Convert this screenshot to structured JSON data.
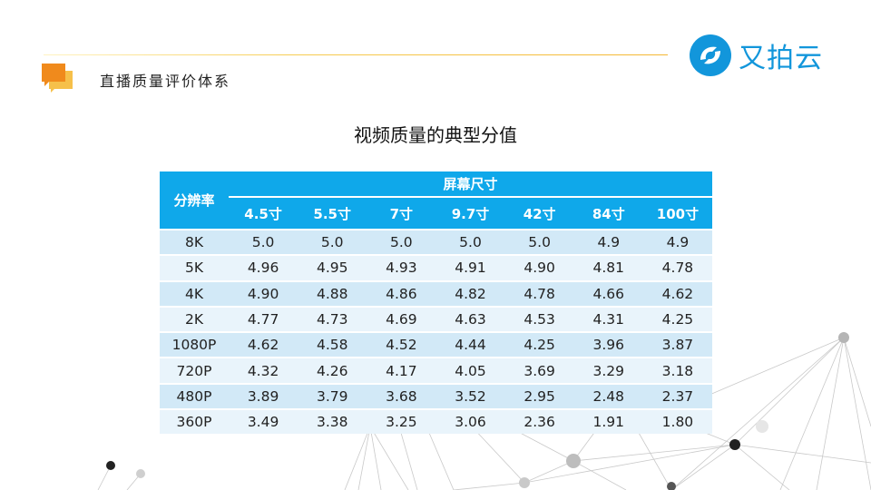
{
  "section_title": "直播质量评价体系",
  "logo_text": "又拍云",
  "page_title": "视频质量的典型分值",
  "table": {
    "row_header": "分辨率",
    "group_header": "屏幕尺寸",
    "columns": [
      "4.5寸",
      "5.5寸",
      "7寸",
      "9.7寸",
      "42寸",
      "84寸",
      "100寸"
    ],
    "rows": [
      {
        "res": "8K",
        "vals": [
          "5.0",
          "5.0",
          "5.0",
          "5.0",
          "5.0",
          "4.9",
          "4.9"
        ]
      },
      {
        "res": "5K",
        "vals": [
          "4.96",
          "4.95",
          "4.93",
          "4.91",
          "4.90",
          "4.81",
          "4.78"
        ]
      },
      {
        "res": "4K",
        "vals": [
          "4.90",
          "4.88",
          "4.86",
          "4.82",
          "4.78",
          "4.66",
          "4.62"
        ]
      },
      {
        "res": "2K",
        "vals": [
          "4.77",
          "4.73",
          "4.69",
          "4.63",
          "4.53",
          "4.31",
          "4.25"
        ]
      },
      {
        "res": "1080P",
        "vals": [
          "4.62",
          "4.58",
          "4.52",
          "4.44",
          "4.25",
          "3.96",
          "3.87"
        ]
      },
      {
        "res": "720P",
        "vals": [
          "4.32",
          "4.26",
          "4.17",
          "4.05",
          "3.69",
          "3.29",
          "3.18"
        ]
      },
      {
        "res": "480P",
        "vals": [
          "3.89",
          "3.79",
          "3.68",
          "3.52",
          "2.95",
          "2.48",
          "2.37"
        ]
      },
      {
        "res": "360P",
        "vals": [
          "3.49",
          "3.38",
          "3.25",
          "3.06",
          "2.36",
          "1.91",
          "1.80"
        ]
      }
    ]
  },
  "colors": {
    "header_blue": "#0fa8ea",
    "row_dark": "#d2e9f7",
    "row_light": "#e9f4fb",
    "brand_blue": "#1296db",
    "accent_orange": "#f39c1f"
  },
  "icons": {
    "section": "chat-bubbles-icon",
    "logo": "upyun-logo-icon"
  }
}
